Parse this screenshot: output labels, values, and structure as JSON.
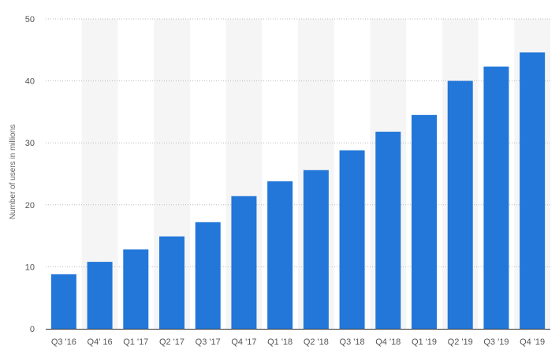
{
  "chart_data": {
    "type": "bar",
    "ylabel": "Number of users in millions",
    "xlabel": "",
    "categories": [
      "Q3 '16",
      "Q4' 16",
      "Q1 '17",
      "Q2 '17",
      "Q3 '17",
      "Q4 '17",
      "Q1 '18",
      "Q2 '18",
      "Q3 '18",
      "Q4 '18",
      "Q1 '19",
      "Q2 '19",
      "Q3 '19",
      "Q4 '19"
    ],
    "values": [
      8.8,
      10.8,
      12.8,
      14.9,
      17.2,
      21.4,
      23.8,
      25.6,
      28.8,
      31.8,
      34.5,
      40,
      42.3,
      44.6
    ],
    "ylim": [
      0,
      50
    ],
    "yticks": [
      "0",
      "10",
      "20",
      "30",
      "40",
      "50"
    ],
    "grid": "horizontal-dotted",
    "colors": {
      "bar": "#2277d9",
      "band": "#f5f5f5",
      "grid": "#bbbbbb",
      "axis": "#333333"
    }
  }
}
